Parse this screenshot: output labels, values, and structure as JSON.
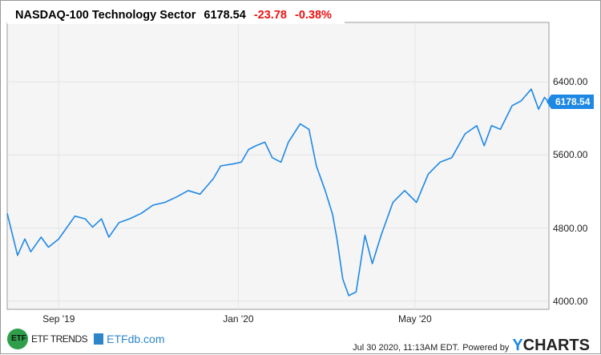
{
  "header": {
    "title": "NASDAQ-100 Technology Sector",
    "last_value": "6178.54",
    "change": "-23.78",
    "change_pct": "-0.38%"
  },
  "footer": {
    "timestamp": "Jul 30 2020, 11:13AM EDT.",
    "powered_by": "Powered by",
    "brand_y": "Y",
    "brand_rest": "CHARTS",
    "logo1": "ETF TRENDS",
    "logo1_mark": "ETF",
    "logo2": "ETFdb.com"
  },
  "colors": {
    "line": "#1e88e5",
    "negative": "#ee1111",
    "plot_bg": "#f5f5f5"
  },
  "chart_data": {
    "type": "line",
    "title": "NASDAQ-100 Technology Sector",
    "xlabel": "",
    "ylabel": "",
    "x_unit": "days since Jul 30 2019",
    "xlim": [
      0,
      368
    ],
    "ylim": [
      3910,
      7050
    ],
    "yticks": [
      {
        "v": 4000,
        "label": "4000.00"
      },
      {
        "v": 4800,
        "label": "4800.00"
      },
      {
        "v": 5600,
        "label": "5600.00"
      },
      {
        "v": 6400,
        "label": "6400.00"
      }
    ],
    "xticks": [
      {
        "v": 35,
        "label": "Sep '19"
      },
      {
        "v": 157,
        "label": "Jan '20"
      },
      {
        "v": 277,
        "label": "May '20"
      }
    ],
    "last_label": "6178.54",
    "grid": true,
    "series": [
      {
        "name": "NASDAQ-100 Technology Sector",
        "x": [
          0,
          7,
          12,
          16,
          23,
          28,
          35,
          39,
          46,
          53,
          58,
          64,
          69,
          76,
          83,
          91,
          99,
          107,
          115,
          123,
          131,
          140,
          145,
          153,
          159,
          164,
          169,
          175,
          180,
          186,
          191,
          199,
          205,
          210,
          216,
          221,
          224,
          228,
          232,
          237,
          243,
          248,
          254,
          262,
          270,
          278,
          286,
          294,
          302,
          311,
          319,
          324,
          329,
          335,
          343,
          349,
          356,
          361,
          365,
          368
        ],
        "y": [
          4960,
          4500,
          4680,
          4540,
          4700,
          4590,
          4680,
          4770,
          4930,
          4900,
          4810,
          4900,
          4700,
          4860,
          4900,
          4960,
          5050,
          5080,
          5140,
          5210,
          5170,
          5340,
          5480,
          5500,
          5520,
          5660,
          5700,
          5740,
          5570,
          5520,
          5740,
          5940,
          5880,
          5480,
          5210,
          4950,
          4680,
          4240,
          4060,
          4100,
          4720,
          4410,
          4720,
          5080,
          5210,
          5080,
          5390,
          5520,
          5570,
          5830,
          5920,
          5700,
          5920,
          5880,
          6140,
          6190,
          6320,
          6100,
          6230,
          6178.54
        ]
      }
    ]
  }
}
